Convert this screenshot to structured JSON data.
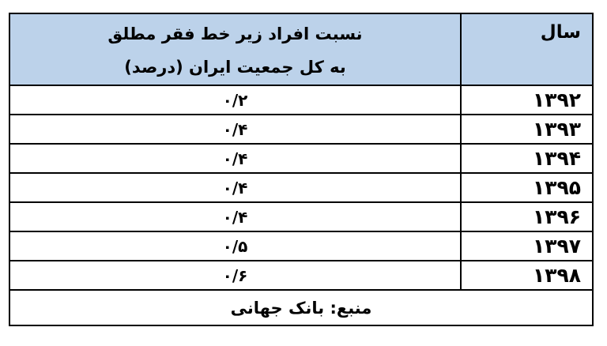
{
  "table": {
    "header": {
      "year_col_label": "سال",
      "ratio_col_line1": "نسبت افراد زیر خط فقر مطلق",
      "ratio_col_line2": "به کل جمعیت ایران (درصد)"
    },
    "rows": [
      {
        "year": "۱۳۹۲",
        "ratio": "۰/۲"
      },
      {
        "year": "۱۳۹۳",
        "ratio": "۰/۴"
      },
      {
        "year": "۱۳۹۴",
        "ratio": "۰/۴"
      },
      {
        "year": "۱۳۹۵",
        "ratio": "۰/۴"
      },
      {
        "year": "۱۳۹۶",
        "ratio": "۰/۴"
      },
      {
        "year": "۱۳۹۷",
        "ratio": "۰/۵"
      },
      {
        "year": "۱۳۹۸",
        "ratio": "۰/۶"
      }
    ],
    "footer": {
      "source_text": "منبع: بانک جهانی"
    },
    "colors": {
      "header_bg": "#bcd2ea",
      "border": "#000000",
      "text": "#000000",
      "page_bg": "#ffffff"
    }
  }
}
